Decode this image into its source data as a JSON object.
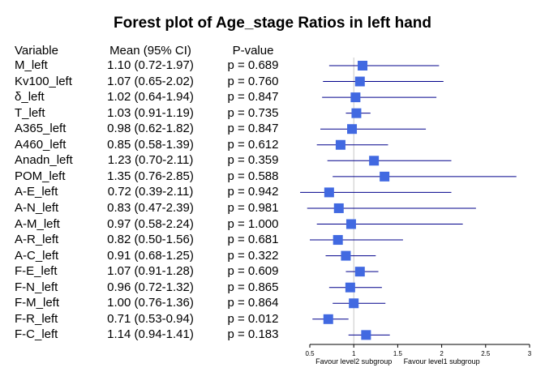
{
  "title": "Forest plot of Age_stage Ratios in left hand",
  "headers": {
    "variable": "Variable",
    "mean": "Mean (95% CI)",
    "p": "P-value"
  },
  "chart_data": {
    "type": "forest",
    "title": "Forest plot of Age_stage Ratios in left hand",
    "reference_line": 1,
    "xlim": [
      0.5,
      3
    ],
    "xticks": [
      "0.5",
      "1",
      "1.5",
      "2",
      "2.5",
      "3"
    ],
    "xlabel_left": "Favour level2 subgroup",
    "xlabel_right": "Favour level1 subgroup",
    "colors": {
      "marker": "#4169E1",
      "ci": "#00008B",
      "ref_line": "#C8C8C8",
      "axis": "#000000"
    },
    "rows": [
      {
        "variable": "M_left",
        "mean": 1.1,
        "lower": 0.72,
        "upper": 1.97,
        "mean_text": "1.10 (0.72-1.97)",
        "p_text": "p = 0.689"
      },
      {
        "variable": "Kv100_left",
        "mean": 1.07,
        "lower": 0.65,
        "upper": 2.02,
        "mean_text": "1.07 (0.65-2.02)",
        "p_text": "p = 0.760"
      },
      {
        "variable": "δ_left",
        "mean": 1.02,
        "lower": 0.64,
        "upper": 1.94,
        "mean_text": "1.02 (0.64-1.94)",
        "p_text": "p = 0.847"
      },
      {
        "variable": "T_left",
        "mean": 1.03,
        "lower": 0.91,
        "upper": 1.19,
        "mean_text": "1.03 (0.91-1.19)",
        "p_text": "p = 0.735"
      },
      {
        "variable": "A365_left",
        "mean": 0.98,
        "lower": 0.62,
        "upper": 1.82,
        "mean_text": "0.98 (0.62-1.82)",
        "p_text": "p = 0.847"
      },
      {
        "variable": "A460_left",
        "mean": 0.85,
        "lower": 0.58,
        "upper": 1.39,
        "mean_text": "0.85 (0.58-1.39)",
        "p_text": "p = 0.612"
      },
      {
        "variable": "Anadn_left",
        "mean": 1.23,
        "lower": 0.7,
        "upper": 2.11,
        "mean_text": "1.23 (0.70-2.11)",
        "p_text": "p = 0.359"
      },
      {
        "variable": "POM_left",
        "mean": 1.35,
        "lower": 0.76,
        "upper": 2.85,
        "mean_text": "1.35 (0.76-2.85)",
        "p_text": "p = 0.588"
      },
      {
        "variable": "A-E_left",
        "mean": 0.72,
        "lower": 0.39,
        "upper": 2.11,
        "mean_text": "0.72 (0.39-2.11)",
        "p_text": "p = 0.942"
      },
      {
        "variable": "A-N_left",
        "mean": 0.83,
        "lower": 0.47,
        "upper": 2.39,
        "mean_text": "0.83 (0.47-2.39)",
        "p_text": "p = 0.981"
      },
      {
        "variable": "A-M_left",
        "mean": 0.97,
        "lower": 0.58,
        "upper": 2.24,
        "mean_text": "0.97 (0.58-2.24)",
        "p_text": "p = 1.000"
      },
      {
        "variable": "A-R_left",
        "mean": 0.82,
        "lower": 0.5,
        "upper": 1.56,
        "mean_text": "0.82 (0.50-1.56)",
        "p_text": "p = 0.681"
      },
      {
        "variable": "A-C_left",
        "mean": 0.91,
        "lower": 0.68,
        "upper": 1.25,
        "mean_text": "0.91 (0.68-1.25)",
        "p_text": "p = 0.322"
      },
      {
        "variable": "F-E_left",
        "mean": 1.07,
        "lower": 0.91,
        "upper": 1.28,
        "mean_text": "1.07 (0.91-1.28)",
        "p_text": "p = 0.609"
      },
      {
        "variable": "F-N_left",
        "mean": 0.96,
        "lower": 0.72,
        "upper": 1.32,
        "mean_text": "0.96 (0.72-1.32)",
        "p_text": "p = 0.865"
      },
      {
        "variable": "F-M_left",
        "mean": 1.0,
        "lower": 0.76,
        "upper": 1.36,
        "mean_text": "1.00 (0.76-1.36)",
        "p_text": "p = 0.864"
      },
      {
        "variable": "F-R_left",
        "mean": 0.71,
        "lower": 0.53,
        "upper": 0.94,
        "mean_text": "0.71 (0.53-0.94)",
        "p_text": "p = 0.012"
      },
      {
        "variable": "F-C_left",
        "mean": 1.14,
        "lower": 0.94,
        "upper": 1.41,
        "mean_text": "1.14 (0.94-1.41)",
        "p_text": "p = 0.183"
      }
    ]
  }
}
